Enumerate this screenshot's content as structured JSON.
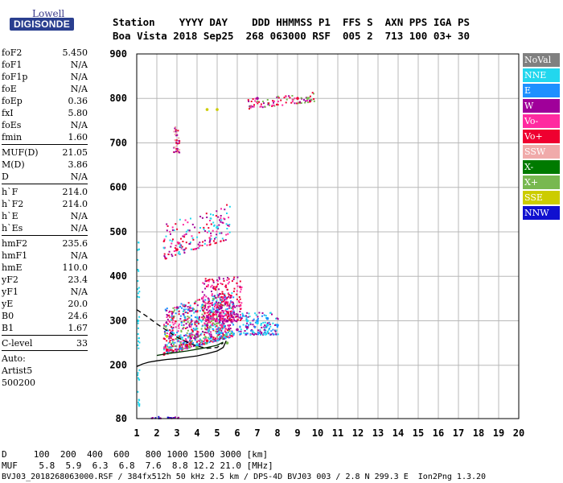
{
  "logo": {
    "top": "Lowell",
    "main": "DIGISONDE"
  },
  "header": {
    "line1": "Station    YYYY DAY    DDD HHMMSS P1  FFS S  AXN PPS IGA PS",
    "line2": "Boa Vista 2018 Sep25  268 063000 RSF  005 2  713 100 03+ 30"
  },
  "params_group1": [
    {
      "name": "foF2",
      "value": "5.450"
    },
    {
      "name": "foF1",
      "value": "N/A"
    },
    {
      "name": "foF1p",
      "value": "N/A"
    },
    {
      "name": "foE",
      "value": "N/A"
    },
    {
      "name": "foEp",
      "value": "0.36"
    },
    {
      "name": "fxI",
      "value": "5.80"
    },
    {
      "name": "foEs",
      "value": "N/A"
    },
    {
      "name": "fmin",
      "value": "1.60"
    }
  ],
  "params_group2": [
    {
      "name": "MUF(D)",
      "value": "21.05"
    },
    {
      "name": "M(D)",
      "value": "3.86"
    },
    {
      "name": "D",
      "value": "N/A"
    }
  ],
  "params_group3": [
    {
      "name": "h`F",
      "value": "214.0"
    },
    {
      "name": "h`F2",
      "value": "214.0"
    },
    {
      "name": "h`E",
      "value": "N/A"
    },
    {
      "name": "h`Es",
      "value": "N/A"
    }
  ],
  "params_group4": [
    {
      "name": "hmF2",
      "value": "235.6"
    },
    {
      "name": "hmF1",
      "value": "N/A"
    },
    {
      "name": "hmE",
      "value": "110.0"
    },
    {
      "name": "yF2",
      "value": "23.4"
    },
    {
      "name": "yF1",
      "value": "N/A"
    },
    {
      "name": "yE",
      "value": "20.0"
    },
    {
      "name": "B0",
      "value": "24.6"
    },
    {
      "name": "B1",
      "value": "1.67"
    }
  ],
  "params_group5": [
    {
      "name": "C-level",
      "value": "33"
    }
  ],
  "auto": {
    "label": "Auto:",
    "software": "Artist5",
    "version": "500200"
  },
  "bottom": {
    "line1": "D     100  200  400  600   800 1000 1500 3000 [km]",
    "line2": "MUF    5.8  5.9  6.3  6.8  7.6  8.8 12.2 21.0 [MHz]",
    "line3": "BVJ03_2018268063000.RSF / 384fx512h 50 kHz 2.5 km / DPS-4D BVJ03 003 / 2.8 N 299.3 E  Ion2Png 1.3.20"
  },
  "legend": [
    {
      "label": "NoVal",
      "color": "#808080"
    },
    {
      "label": "NNE",
      "color": "#22d7ee"
    },
    {
      "label": "E",
      "color": "#1e90ff"
    },
    {
      "label": "W",
      "color": "#a0009a"
    },
    {
      "label": "Vo-",
      "color": "#ff2aa0"
    },
    {
      "label": "Vo+",
      "color": "#ef0030"
    },
    {
      "label": "SSW",
      "color": "#f0aaaa"
    },
    {
      "label": "X-",
      "color": "#007a00"
    },
    {
      "label": "X+",
      "color": "#78b850"
    },
    {
      "label": "SSE",
      "color": "#cccc00"
    },
    {
      "label": "NNW",
      "color": "#1010d0"
    }
  ],
  "chart_data": {
    "type": "scatter",
    "xlabel": "",
    "ylabel": "",
    "xlim": [
      1,
      20
    ],
    "ylim": [
      80,
      900
    ],
    "x_ticks": [
      1,
      2,
      3,
      4,
      5,
      6,
      7,
      8,
      9,
      10,
      11,
      12,
      13,
      14,
      15,
      16,
      17,
      18,
      19,
      20
    ],
    "y_ticks": [
      80,
      200,
      300,
      400,
      500,
      600,
      700,
      800,
      900
    ],
    "grid": true,
    "series": [
      {
        "name": "W",
        "color": "#a0009a",
        "points": [
          [
            5.0,
            320
          ],
          [
            5.5,
            300
          ],
          [
            4.5,
            290
          ],
          [
            6.0,
            280
          ],
          [
            5.2,
            330
          ],
          [
            4.0,
            270
          ],
          [
            6.5,
            285
          ],
          [
            7.0,
            800
          ]
        ]
      },
      {
        "name": "Vo+",
        "color": "#ef0030",
        "points": [
          [
            2.5,
            235
          ],
          [
            3.5,
            245
          ],
          [
            4.5,
            255
          ],
          [
            9.0,
            800
          ],
          [
            3.0,
            460
          ]
        ]
      },
      {
        "name": "NNE",
        "color": "#22d7ee",
        "points": [
          [
            6.5,
            300
          ],
          [
            7.0,
            295
          ],
          [
            7.5,
            290
          ],
          [
            5.0,
            510
          ],
          [
            1.05,
            300
          ]
        ]
      },
      {
        "name": "E",
        "color": "#1e90ff",
        "points": [
          [
            7.0,
            300
          ],
          [
            7.5,
            305
          ],
          [
            8.0,
            290
          ]
        ]
      },
      {
        "name": "X+",
        "color": "#78b850",
        "points": [
          [
            9.5,
            800
          ],
          [
            4.0,
            240
          ],
          [
            5.5,
            250
          ]
        ]
      },
      {
        "name": "SSE",
        "color": "#cccc00",
        "points": [
          [
            4.5,
            775
          ],
          [
            5.0,
            775
          ],
          [
            2.5,
            265
          ]
        ]
      }
    ],
    "f2_trace": {
      "x": [
        1.0,
        1.3,
        1.6,
        2.0,
        2.5,
        3.0,
        3.5,
        4.0,
        4.5,
        5.0,
        5.3,
        5.45
      ],
      "y": [
        197,
        203,
        207,
        210,
        213,
        215,
        218,
        221,
        226,
        232,
        240,
        255
      ]
    },
    "model_trace": {
      "x": [
        1.0,
        1.5,
        2.0,
        2.5,
        3.0,
        3.5,
        4.0,
        4.5,
        5.0,
        5.3
      ],
      "y": [
        325,
        310,
        293,
        278,
        263,
        252,
        243,
        238,
        240,
        250
      ]
    },
    "muf_trace": {
      "x": [
        2.0,
        2.5,
        3.0,
        3.5,
        4.0,
        4.5,
        5.0,
        5.3
      ],
      "y": [
        222,
        226,
        229,
        232,
        236,
        240,
        245,
        252
      ]
    }
  }
}
